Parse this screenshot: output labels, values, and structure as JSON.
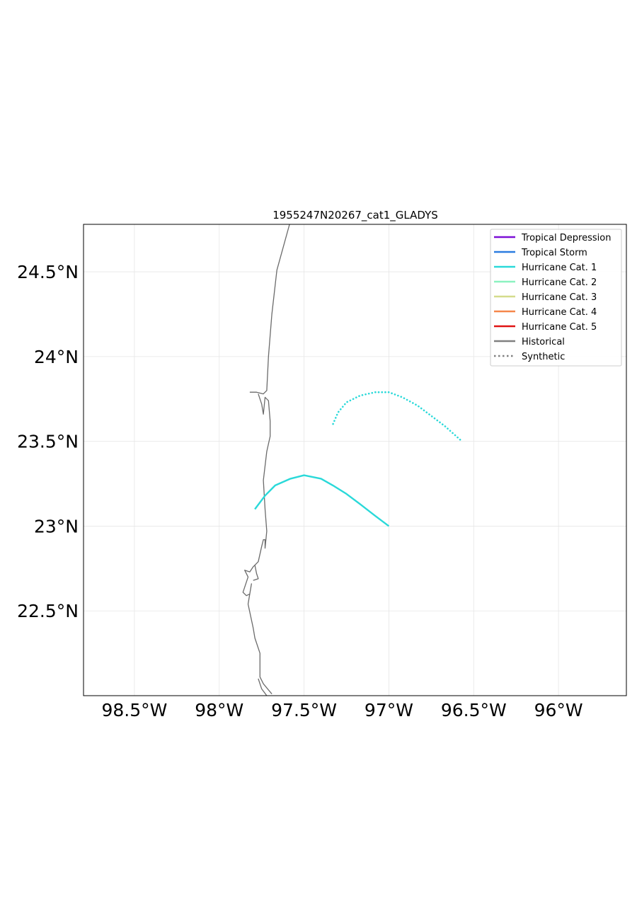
{
  "chart_data": {
    "type": "line",
    "title": "1955247N20267_cat1_GLADYS",
    "xlim": [
      -98.8,
      -95.6
    ],
    "ylim": [
      22.0,
      24.78
    ],
    "x_ticks": [
      {
        "value": -98.5,
        "label": "98.5°W"
      },
      {
        "value": -98.0,
        "label": "98°W"
      },
      {
        "value": -97.5,
        "label": "97.5°W"
      },
      {
        "value": -97.0,
        "label": "97°W"
      },
      {
        "value": -96.5,
        "label": "96.5°W"
      },
      {
        "value": -96.0,
        "label": "96°W"
      }
    ],
    "y_ticks": [
      {
        "value": 24.5,
        "label": "24.5°N"
      },
      {
        "value": 24.0,
        "label": "24°N"
      },
      {
        "value": 23.5,
        "label": "23.5°N"
      },
      {
        "value": 23.0,
        "label": "23°N"
      },
      {
        "value": 22.5,
        "label": "22.5°N"
      }
    ],
    "grid": true,
    "legend_position": "top-right",
    "legend": [
      {
        "label": "Tropical Depression",
        "color": "#7b0fd6",
        "style": "solid"
      },
      {
        "label": "Tropical Storm",
        "color": "#2b7ce0",
        "style": "solid"
      },
      {
        "label": "Hurricane Cat. 1",
        "color": "#2ad9d9",
        "style": "solid"
      },
      {
        "label": "Hurricane Cat. 2",
        "color": "#8cf2c0",
        "style": "solid"
      },
      {
        "label": "Hurricane Cat. 3",
        "color": "#d4dc8c",
        "style": "solid"
      },
      {
        "label": "Hurricane Cat. 4",
        "color": "#f5874a",
        "style": "solid"
      },
      {
        "label": "Hurricane Cat. 5",
        "color": "#e01414",
        "style": "solid"
      },
      {
        "label": "Historical",
        "color": "#808080",
        "style": "solid"
      },
      {
        "label": "Synthetic",
        "color": "#808080",
        "style": "dotted"
      }
    ],
    "series": [
      {
        "category": "Hurricane Cat. 1",
        "kind": "historical",
        "color": "#2ad9d9",
        "style": "solid",
        "points": [
          [
            -97.0,
            23.0
          ],
          [
            -97.08,
            23.06
          ],
          [
            -97.17,
            23.13
          ],
          [
            -97.25,
            23.19
          ],
          [
            -97.33,
            23.24
          ],
          [
            -97.4,
            23.28
          ],
          [
            -97.5,
            23.3
          ],
          [
            -97.58,
            23.28
          ],
          [
            -97.67,
            23.24
          ],
          [
            -97.73,
            23.18
          ],
          [
            -97.79,
            23.1
          ]
        ]
      },
      {
        "category": "Hurricane Cat. 1",
        "kind": "synthetic",
        "color": "#2ad9d9",
        "style": "dotted",
        "points": [
          [
            -96.58,
            23.51
          ],
          [
            -96.67,
            23.59
          ],
          [
            -96.75,
            23.65
          ],
          [
            -96.83,
            23.71
          ],
          [
            -96.92,
            23.76
          ],
          [
            -97.0,
            23.79
          ],
          [
            -97.08,
            23.79
          ],
          [
            -97.17,
            23.77
          ],
          [
            -97.25,
            23.73
          ],
          [
            -97.3,
            23.67
          ],
          [
            -97.33,
            23.6
          ]
        ]
      }
    ],
    "coastline": [
      [
        [
          -97.58,
          24.8
        ],
        [
          -97.66,
          24.51
        ],
        [
          -97.69,
          24.25
        ],
        [
          -97.71,
          24.0
        ],
        [
          -97.72,
          23.8
        ],
        [
          -97.74,
          23.78
        ],
        [
          -97.78,
          23.79
        ],
        [
          -97.82,
          23.79
        ]
      ],
      [
        [
          -97.77,
          23.78
        ],
        [
          -97.75,
          23.72
        ],
        [
          -97.74,
          23.66
        ],
        [
          -97.73,
          23.76
        ],
        [
          -97.71,
          23.74
        ],
        [
          -97.7,
          23.62
        ],
        [
          -97.7,
          23.53
        ],
        [
          -97.72,
          23.44
        ],
        [
          -97.74,
          23.27
        ],
        [
          -97.73,
          23.1
        ],
        [
          -97.72,
          22.97
        ],
        [
          -97.73,
          22.87
        ],
        [
          -97.73,
          22.92
        ],
        [
          -97.74,
          22.92
        ],
        [
          -97.75,
          22.88
        ],
        [
          -97.77,
          22.79
        ],
        [
          -97.8,
          22.76
        ],
        [
          -97.82,
          22.73
        ],
        [
          -97.85,
          22.74
        ],
        [
          -97.83,
          22.7
        ],
        [
          -97.86,
          22.61
        ],
        [
          -97.84,
          22.59
        ],
        [
          -97.82,
          22.6
        ],
        [
          -97.81,
          22.66
        ],
        [
          -97.83,
          22.54
        ],
        [
          -97.8,
          22.4
        ],
        [
          -97.79,
          22.34
        ],
        [
          -97.76,
          22.25
        ],
        [
          -97.76,
          22.11
        ],
        [
          -97.74,
          22.07
        ],
        [
          -97.69,
          22.01
        ]
      ],
      [
        [
          -97.79,
          22.77
        ],
        [
          -97.78,
          22.72
        ],
        [
          -97.77,
          22.69
        ],
        [
          -97.8,
          22.68
        ]
      ],
      [
        [
          -97.77,
          22.1
        ],
        [
          -97.75,
          22.04
        ],
        [
          -97.72,
          22.0
        ]
      ]
    ]
  }
}
